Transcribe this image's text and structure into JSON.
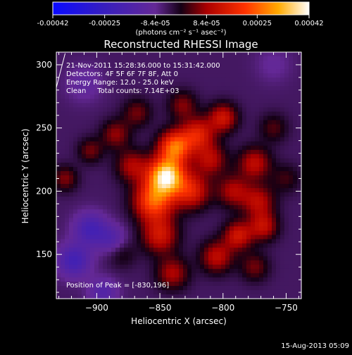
{
  "chart_data": {
    "type": "heatmap",
    "title": "Reconstructed RHESSI Image",
    "xlabel": "Heliocentric X (arcsec)",
    "ylabel": "Heliocentric Y (arcsec)",
    "xlim": [
      -932,
      -738
    ],
    "ylim": [
      115,
      310
    ],
    "xticks": [
      -900,
      -850,
      -800,
      -750
    ],
    "yticks": [
      150,
      200,
      250,
      300
    ],
    "colorbar": {
      "ticks": [
        "-0.00042",
        "-0.00025",
        "-8.4e-05",
        "8.4e-05",
        "0.00025",
        "0.00042"
      ],
      "tick_values": [
        -0.00042,
        -0.00025,
        -8.4e-05,
        8.4e-05,
        0.00025,
        0.00042
      ],
      "range": [
        -0.00042,
        0.00042
      ],
      "unit_label": "(photons cm⁻² s⁻¹ asec⁻²)"
    },
    "annotations": [
      "21-Nov-2011 15:28:36.000 to 15:31:42.000",
      "Detectors: 4F 5F 6F 7F 8F, Att 0",
      "Energy Range: 12.0 - 25.0 keV",
      "Clean     Total counts: 7.14E+03"
    ],
    "peak_label": "Position of Peak = [-830,196]",
    "peak": [
      -830,
      196
    ],
    "sources": [
      {
        "x": -845,
        "y": 212,
        "amp": 0.00043,
        "sigma": 10
      },
      {
        "x": -838,
        "y": 235,
        "amp": 0.0003,
        "sigma": 9
      },
      {
        "x": -855,
        "y": 192,
        "amp": 0.00028,
        "sigma": 11
      },
      {
        "x": -825,
        "y": 200,
        "amp": 0.0002,
        "sigma": 10
      },
      {
        "x": -820,
        "y": 245,
        "amp": 0.0002,
        "sigma": 9
      },
      {
        "x": -800,
        "y": 258,
        "amp": 0.00018,
        "sigma": 8
      },
      {
        "x": -810,
        "y": 225,
        "amp": 0.00015,
        "sigma": 9
      },
      {
        "x": -775,
        "y": 222,
        "amp": 0.00016,
        "sigma": 9
      },
      {
        "x": -792,
        "y": 200,
        "amp": 0.00014,
        "sigma": 9
      },
      {
        "x": -772,
        "y": 192,
        "amp": 0.00015,
        "sigma": 9
      },
      {
        "x": -788,
        "y": 165,
        "amp": 0.00018,
        "sigma": 8
      },
      {
        "x": -768,
        "y": 172,
        "amp": 0.00016,
        "sigma": 8
      },
      {
        "x": -805,
        "y": 148,
        "amp": 0.00016,
        "sigma": 9
      },
      {
        "x": -775,
        "y": 140,
        "amp": 0.0001,
        "sigma": 8
      },
      {
        "x": -850,
        "y": 165,
        "amp": 0.00018,
        "sigma": 10
      },
      {
        "x": -840,
        "y": 135,
        "amp": 0.00014,
        "sigma": 9
      },
      {
        "x": -872,
        "y": 220,
        "amp": 0.00014,
        "sigma": 9
      },
      {
        "x": -885,
        "y": 245,
        "amp": 0.00012,
        "sigma": 8
      },
      {
        "x": -868,
        "y": 262,
        "amp": 0.0001,
        "sigma": 8
      },
      {
        "x": -832,
        "y": 268,
        "amp": 0.00011,
        "sigma": 8
      },
      {
        "x": -905,
        "y": 232,
        "amp": 0.0001,
        "sigma": 7
      },
      {
        "x": -925,
        "y": 210,
        "amp": 0.00011,
        "sigma": 7
      },
      {
        "x": -880,
        "y": 150,
        "amp": 6e-05,
        "sigma": 8
      },
      {
        "x": -760,
        "y": 250,
        "amp": 8e-05,
        "sigma": 8
      },
      {
        "x": -750,
        "y": 210,
        "amp": 7e-05,
        "sigma": 8
      },
      {
        "x": -905,
        "y": 170,
        "amp": -0.00015,
        "sigma": 9
      },
      {
        "x": -918,
        "y": 145,
        "amp": -0.00016,
        "sigma": 9
      },
      {
        "x": -888,
        "y": 162,
        "amp": -0.0001,
        "sigma": 8
      },
      {
        "x": -895,
        "y": 120,
        "amp": -0.0001,
        "sigma": 8
      },
      {
        "x": -910,
        "y": 285,
        "amp": -6e-05,
        "sigma": 10
      },
      {
        "x": -760,
        "y": 300,
        "amp": -4e-05,
        "sigma": 10
      }
    ],
    "background": -5e-05
  },
  "footer": {
    "timestamp": "15-Aug-2013 05:09"
  }
}
